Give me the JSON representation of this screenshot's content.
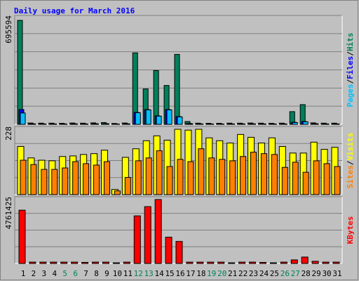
{
  "chart_data": [
    {
      "type": "bar",
      "title": "Daily usage for March 2016",
      "series": [
        {
          "name": "Hits",
          "color": "#00805C",
          "values": [
            695594,
            9000,
            8000,
            8000,
            7000,
            9000,
            8000,
            10000,
            12000,
            6000,
            9000,
            478000,
            236600,
            360000,
            260000,
            468000,
            19000,
            8000,
            7000,
            7000,
            8000,
            8000,
            9000,
            8000,
            7000,
            8000,
            85000,
            132000,
            10000,
            8000,
            8000
          ]
        },
        {
          "name": "Files",
          "color": "#0000FF",
          "values": [
            99000,
            4000,
            3500,
            3500,
            3000,
            4000,
            3500,
            4500,
            5000,
            2500,
            4000,
            80000,
            99000,
            57000,
            99000,
            52000,
            6000,
            3500,
            3000,
            3000,
            3500,
            3500,
            4000,
            3500,
            3000,
            3500,
            14000,
            19000,
            4500,
            3500,
            3500
          ]
        },
        {
          "name": "Pages",
          "color": "#00C0FF",
          "values": [
            76000,
            3000,
            2500,
            2500,
            2000,
            3000,
            2500,
            3500,
            4000,
            2000,
            3000,
            78000,
            97000,
            55000,
            97000,
            50000,
            4500,
            2500,
            2000,
            2000,
            2500,
            2500,
            3000,
            2500,
            2000,
            2500,
            12000,
            17000,
            3500,
            2500,
            2500
          ]
        }
      ],
      "ylim": [
        0,
        695594
      ],
      "yticks": [
        695594
      ]
    },
    {
      "type": "bar",
      "series": [
        {
          "name": "Visits",
          "color": "#FFFF00",
          "values": [
            168,
            128,
            120,
            118,
            133,
            135,
            140,
            143,
            155,
            18,
            130,
            160,
            188,
            205,
            190,
            228,
            225,
            228,
            198,
            188,
            180,
            210,
            200,
            180,
            198,
            168,
            145,
            145,
            183,
            158,
            165
          ]
        },
        {
          "name": "Sites",
          "color": "#FF8000",
          "values": [
            120,
            105,
            88,
            88,
            93,
            115,
            108,
            103,
            115,
            13,
            60,
            118,
            128,
            153,
            98,
            123,
            115,
            160,
            128,
            123,
            118,
            133,
            148,
            143,
            140,
            95,
            113,
            78,
            118,
            108,
            98
          ]
        }
      ],
      "ylim": [
        0,
        228
      ],
      "yticks": [
        228
      ]
    },
    {
      "type": "bar",
      "categories": [
        "1",
        "2",
        "3",
        "4",
        "5",
        "6",
        "7",
        "8",
        "9",
        "10",
        "11",
        "12",
        "13",
        "14",
        "15",
        "16",
        "17",
        "18",
        "19",
        "20",
        "21",
        "22",
        "23",
        "24",
        "25",
        "26",
        "27",
        "28",
        "29",
        "30",
        "31"
      ],
      "category_colors": [
        "#000000",
        "#000000",
        "#000000",
        "#000000",
        "#00805C",
        "#00805C",
        "#000000",
        "#000000",
        "#000000",
        "#000000",
        "#000000",
        "#00805C",
        "#00805C",
        "#000000",
        "#000000",
        "#000000",
        "#000000",
        "#000000",
        "#00805C",
        "#00805C",
        "#000000",
        "#000000",
        "#000000",
        "#000000",
        "#000000",
        "#00805C",
        "#00805C",
        "#000000",
        "#000000",
        "#000000",
        "#000000"
      ],
      "series": [
        {
          "name": "KBytes",
          "color": "#FF0000",
          "values": [
            3968000,
            100000,
            100000,
            100000,
            100000,
            100000,
            80000,
            100000,
            100000,
            50000,
            100000,
            3545000,
            4232000,
            4761425,
            1957000,
            1640000,
            100000,
            100000,
            100000,
            100000,
            50000,
            100000,
            100000,
            80000,
            50000,
            100000,
            265000,
            476000,
            160000,
            100000,
            100000
          ]
        }
      ],
      "ylim": [
        0,
        4761425
      ],
      "yticks": [
        4761425
      ]
    }
  ]
}
